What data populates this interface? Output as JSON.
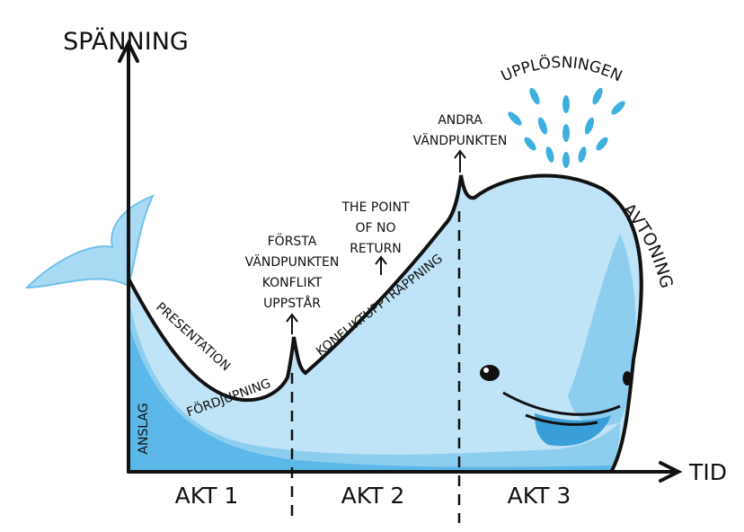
{
  "axis": {
    "y_label": "SPÄNNING",
    "x_label": "TID"
  },
  "acts": [
    "AKT 1",
    "AKT 2",
    "AKT 3"
  ],
  "labels": {
    "anslag": "ANSLAG",
    "presentation": "PRESENTATION",
    "fordjupning": "FÖRDJUPNING",
    "forsta_vandpunkten": [
      "FÖRSTA",
      "VÄNDPUNKTEN",
      "KONFLIKT",
      "UPPSTÅR"
    ],
    "point_of_no_return": [
      "THE POINT",
      "OF NO",
      "RETURN"
    ],
    "konfliktupptrappning": "KONFLIKTUPPTRAPPNING",
    "andra_vandpunkten": [
      "ANDRA",
      "VÄNDPUNKTEN"
    ],
    "upplosningen": "UPPLÖSNINGEN",
    "avtoning": "AVTONING"
  }
}
